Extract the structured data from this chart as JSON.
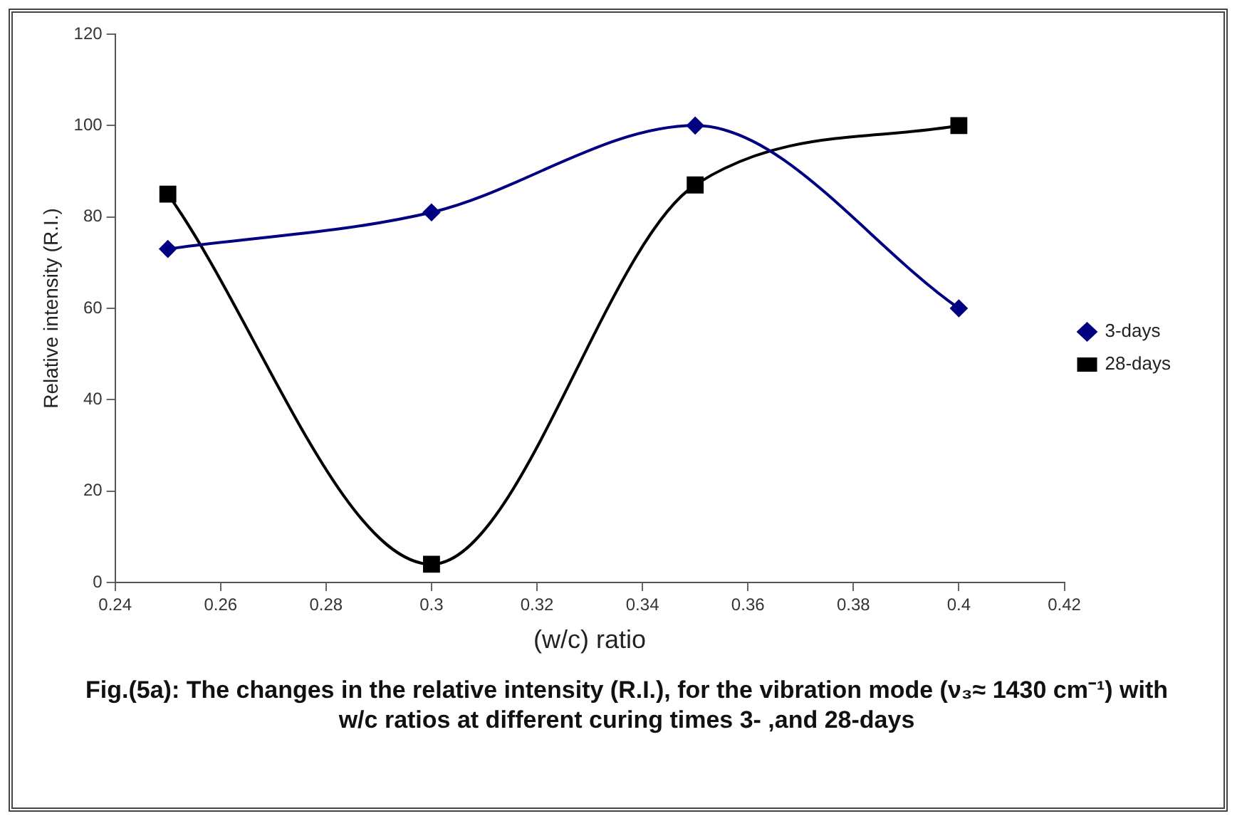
{
  "chart_data": {
    "type": "line",
    "xlabel": "(w/c) ratio",
    "ylabel": "Relative intensity (R.I.)",
    "x": [
      0.25,
      0.3,
      0.35,
      0.4
    ],
    "series": [
      {
        "name": "3-days",
        "color": "#000080",
        "marker": "diamond",
        "values": [
          73,
          81,
          100,
          60
        ]
      },
      {
        "name": "28-days",
        "color": "#000000",
        "marker": "square",
        "values": [
          85,
          4,
          87,
          100
        ]
      }
    ],
    "xlim": [
      0.24,
      0.42
    ],
    "xticks": [
      0.24,
      0.26,
      0.28,
      0.3,
      0.32,
      0.34,
      0.36,
      0.38,
      0.4,
      0.42
    ],
    "ylim": [
      0,
      120
    ],
    "yticks": [
      0,
      20,
      40,
      60,
      80,
      100,
      120
    ],
    "grid": false,
    "legend": "right",
    "annotations": [
      "Fig.(5a): The changes in the relative intensity (R.I.), for the vibration mode (ν₃≈ 1430 cm⁻¹) with w/c ratios at different curing times 3- ,and 28-days"
    ]
  }
}
